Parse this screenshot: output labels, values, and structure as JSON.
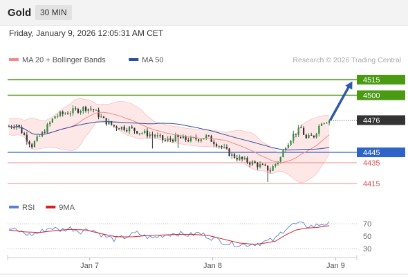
{
  "header": {
    "symbol": "Gold",
    "interval": "30 MIN",
    "datetime": "Friday, January 9, 2026 12:05:31 AM CET"
  },
  "colors": {
    "bollinger": "#f48a8a",
    "bollinger_fill": "#fde3e3",
    "ma50": "#2b4f9a",
    "candle_up": "#2d8a3d",
    "candle_down": "#333333",
    "resistance_green": "#4a9a12",
    "support_blue": "#2e63c8",
    "support_red": "#f48a8a",
    "label_red": "#e05050",
    "rsi": "#5a7fd6",
    "rsi_ma": "#d82020",
    "arrow": "#2e5aa8",
    "last_price_box": "#333333"
  },
  "chart_data": [
    {
      "type": "candlestick",
      "legend": {
        "placement": "top-left",
        "items": [
          {
            "name": "MA 20 + Bollinger Bands",
            "color": "#f48a8a"
          },
          {
            "name": "MA 50",
            "color": "#2b4f9a"
          }
        ]
      },
      "watermark": "Research © 2026 Trading Central",
      "ylim": [
        4405,
        4525
      ],
      "x_ticks": [
        {
          "label": "Jan 7",
          "index": 32
        },
        {
          "label": "Jan 8",
          "index": 80
        },
        {
          "label": "Jan 9",
          "index": 128
        }
      ],
      "candle_count": 126,
      "ohlc_anchors": [
        [
          0,
          4470
        ],
        [
          3,
          4472
        ],
        [
          7,
          4458
        ],
        [
          9,
          4452
        ],
        [
          13,
          4463
        ],
        [
          18,
          4480
        ],
        [
          24,
          4484
        ],
        [
          30,
          4488
        ],
        [
          33,
          4486
        ],
        [
          37,
          4476
        ],
        [
          41,
          4470
        ],
        [
          47,
          4468
        ],
        [
          52,
          4464
        ],
        [
          57,
          4461
        ],
        [
          61,
          4456
        ],
        [
          65,
          4459
        ],
        [
          71,
          4457
        ],
        [
          77,
          4460
        ],
        [
          82,
          4452
        ],
        [
          87,
          4442
        ],
        [
          92,
          4437
        ],
        [
          96,
          4434
        ],
        [
          100,
          4430
        ],
        [
          102,
          4428
        ],
        [
          104,
          4434
        ],
        [
          106,
          4440
        ],
        [
          108,
          4452
        ],
        [
          111,
          4462
        ],
        [
          114,
          4468
        ],
        [
          116,
          4458
        ],
        [
          119,
          4461
        ],
        [
          122,
          4475
        ],
        [
          125,
          4476
        ]
      ],
      "levels": [
        {
          "value": 4515,
          "label": "4515",
          "style": "green-box"
        },
        {
          "value": 4500,
          "label": "4500",
          "style": "green-box"
        },
        {
          "value": 4476,
          "label": "4476",
          "style": "last-price"
        },
        {
          "value": 4445,
          "label": "4445",
          "style": "blue-box"
        },
        {
          "value": 4435,
          "label": "4435",
          "style": "red-text"
        },
        {
          "value": 4415,
          "label": "4415",
          "style": "red-text"
        }
      ],
      "projection": {
        "from": 4476,
        "to": 4515
      }
    },
    {
      "type": "line",
      "legend": {
        "placement": "top-left",
        "items": [
          {
            "name": "RSI",
            "color": "#5a7fd6"
          },
          {
            "name": "9MA",
            "color": "#d82020"
          }
        ]
      },
      "ylim": [
        20,
        78
      ],
      "y_ticks": [
        "70",
        "50",
        "30"
      ],
      "reference_lines": [
        70,
        30
      ],
      "rsi_anchors": [
        [
          0,
          62
        ],
        [
          4,
          58
        ],
        [
          8,
          52
        ],
        [
          12,
          56
        ],
        [
          16,
          64
        ],
        [
          20,
          60
        ],
        [
          24,
          63
        ],
        [
          28,
          58
        ],
        [
          32,
          62
        ],
        [
          35,
          55
        ],
        [
          38,
          49
        ],
        [
          41,
          45
        ],
        [
          44,
          47
        ],
        [
          47,
          51
        ],
        [
          50,
          55
        ],
        [
          53,
          50
        ],
        [
          56,
          47
        ],
        [
          59,
          51
        ],
        [
          62,
          53
        ],
        [
          65,
          55
        ],
        [
          68,
          53
        ],
        [
          71,
          52
        ],
        [
          74,
          55
        ],
        [
          77,
          51
        ],
        [
          80,
          46
        ],
        [
          83,
          42
        ],
        [
          86,
          38
        ],
        [
          89,
          37
        ],
        [
          92,
          36
        ],
        [
          95,
          38
        ],
        [
          98,
          39
        ],
        [
          101,
          42
        ],
        [
          104,
          45
        ],
        [
          106,
          55
        ],
        [
          108,
          63
        ],
        [
          110,
          68
        ],
        [
          113,
          70
        ],
        [
          116,
          67
        ],
        [
          119,
          66
        ],
        [
          122,
          70
        ],
        [
          125,
          70
        ]
      ],
      "rsi_ma_anchors": [
        [
          0,
          60
        ],
        [
          6,
          57
        ],
        [
          12,
          56
        ],
        [
          18,
          59
        ],
        [
          24,
          61
        ],
        [
          30,
          60
        ],
        [
          36,
          54
        ],
        [
          42,
          49
        ],
        [
          48,
          49
        ],
        [
          54,
          51
        ],
        [
          60,
          52
        ],
        [
          66,
          53
        ],
        [
          72,
          53
        ],
        [
          78,
          51
        ],
        [
          84,
          45
        ],
        [
          90,
          39
        ],
        [
          96,
          37
        ],
        [
          100,
          39
        ],
        [
          104,
          42
        ],
        [
          108,
          52
        ],
        [
          112,
          60
        ],
        [
          116,
          63
        ],
        [
          120,
          64
        ],
        [
          125,
          67
        ]
      ]
    }
  ]
}
